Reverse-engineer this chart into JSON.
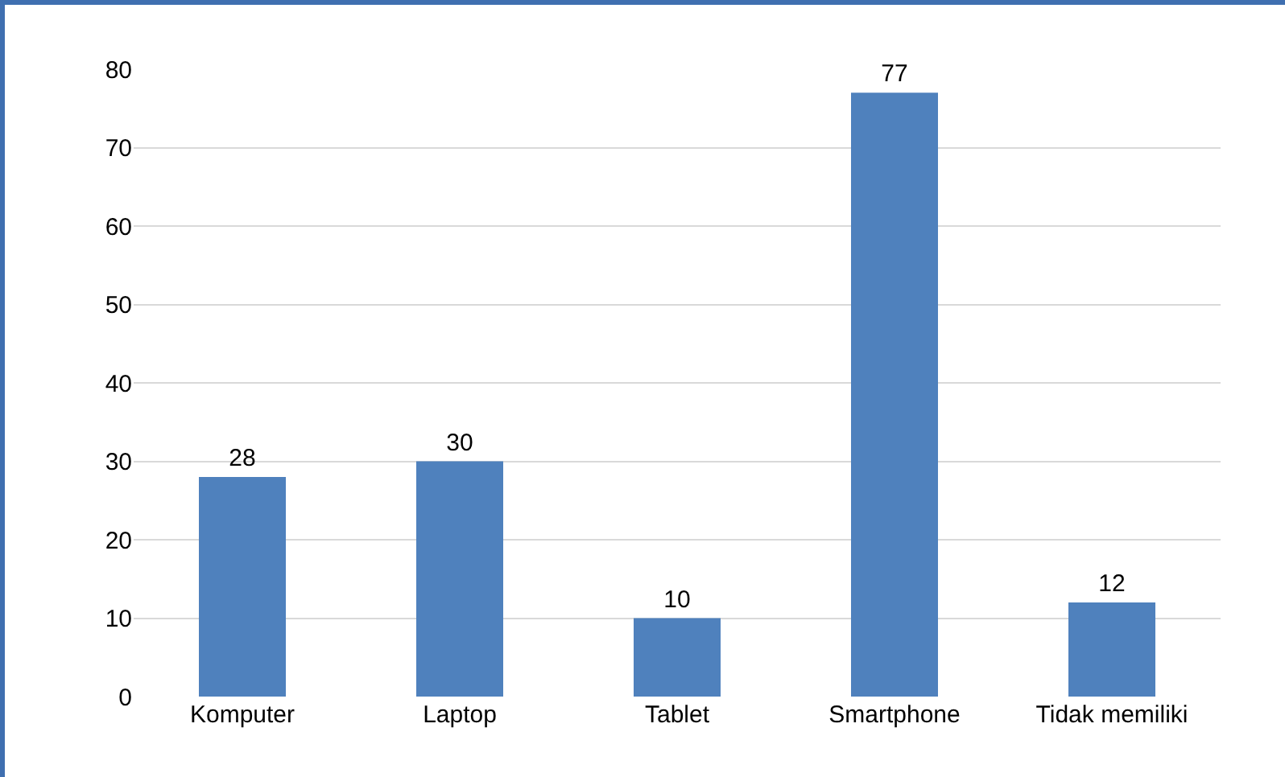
{
  "chart_data": {
    "type": "bar",
    "categories": [
      "Komputer",
      "Laptop",
      "Tablet",
      "Smartphone",
      "Tidak memiliki"
    ],
    "values": [
      28,
      30,
      10,
      77,
      12
    ],
    "color": "#4f81bd",
    "data_labels": true,
    "ylim": [
      0,
      80
    ],
    "yticks": [
      0,
      10,
      20,
      30,
      40,
      50,
      60,
      70,
      80
    ],
    "grid": "y"
  }
}
